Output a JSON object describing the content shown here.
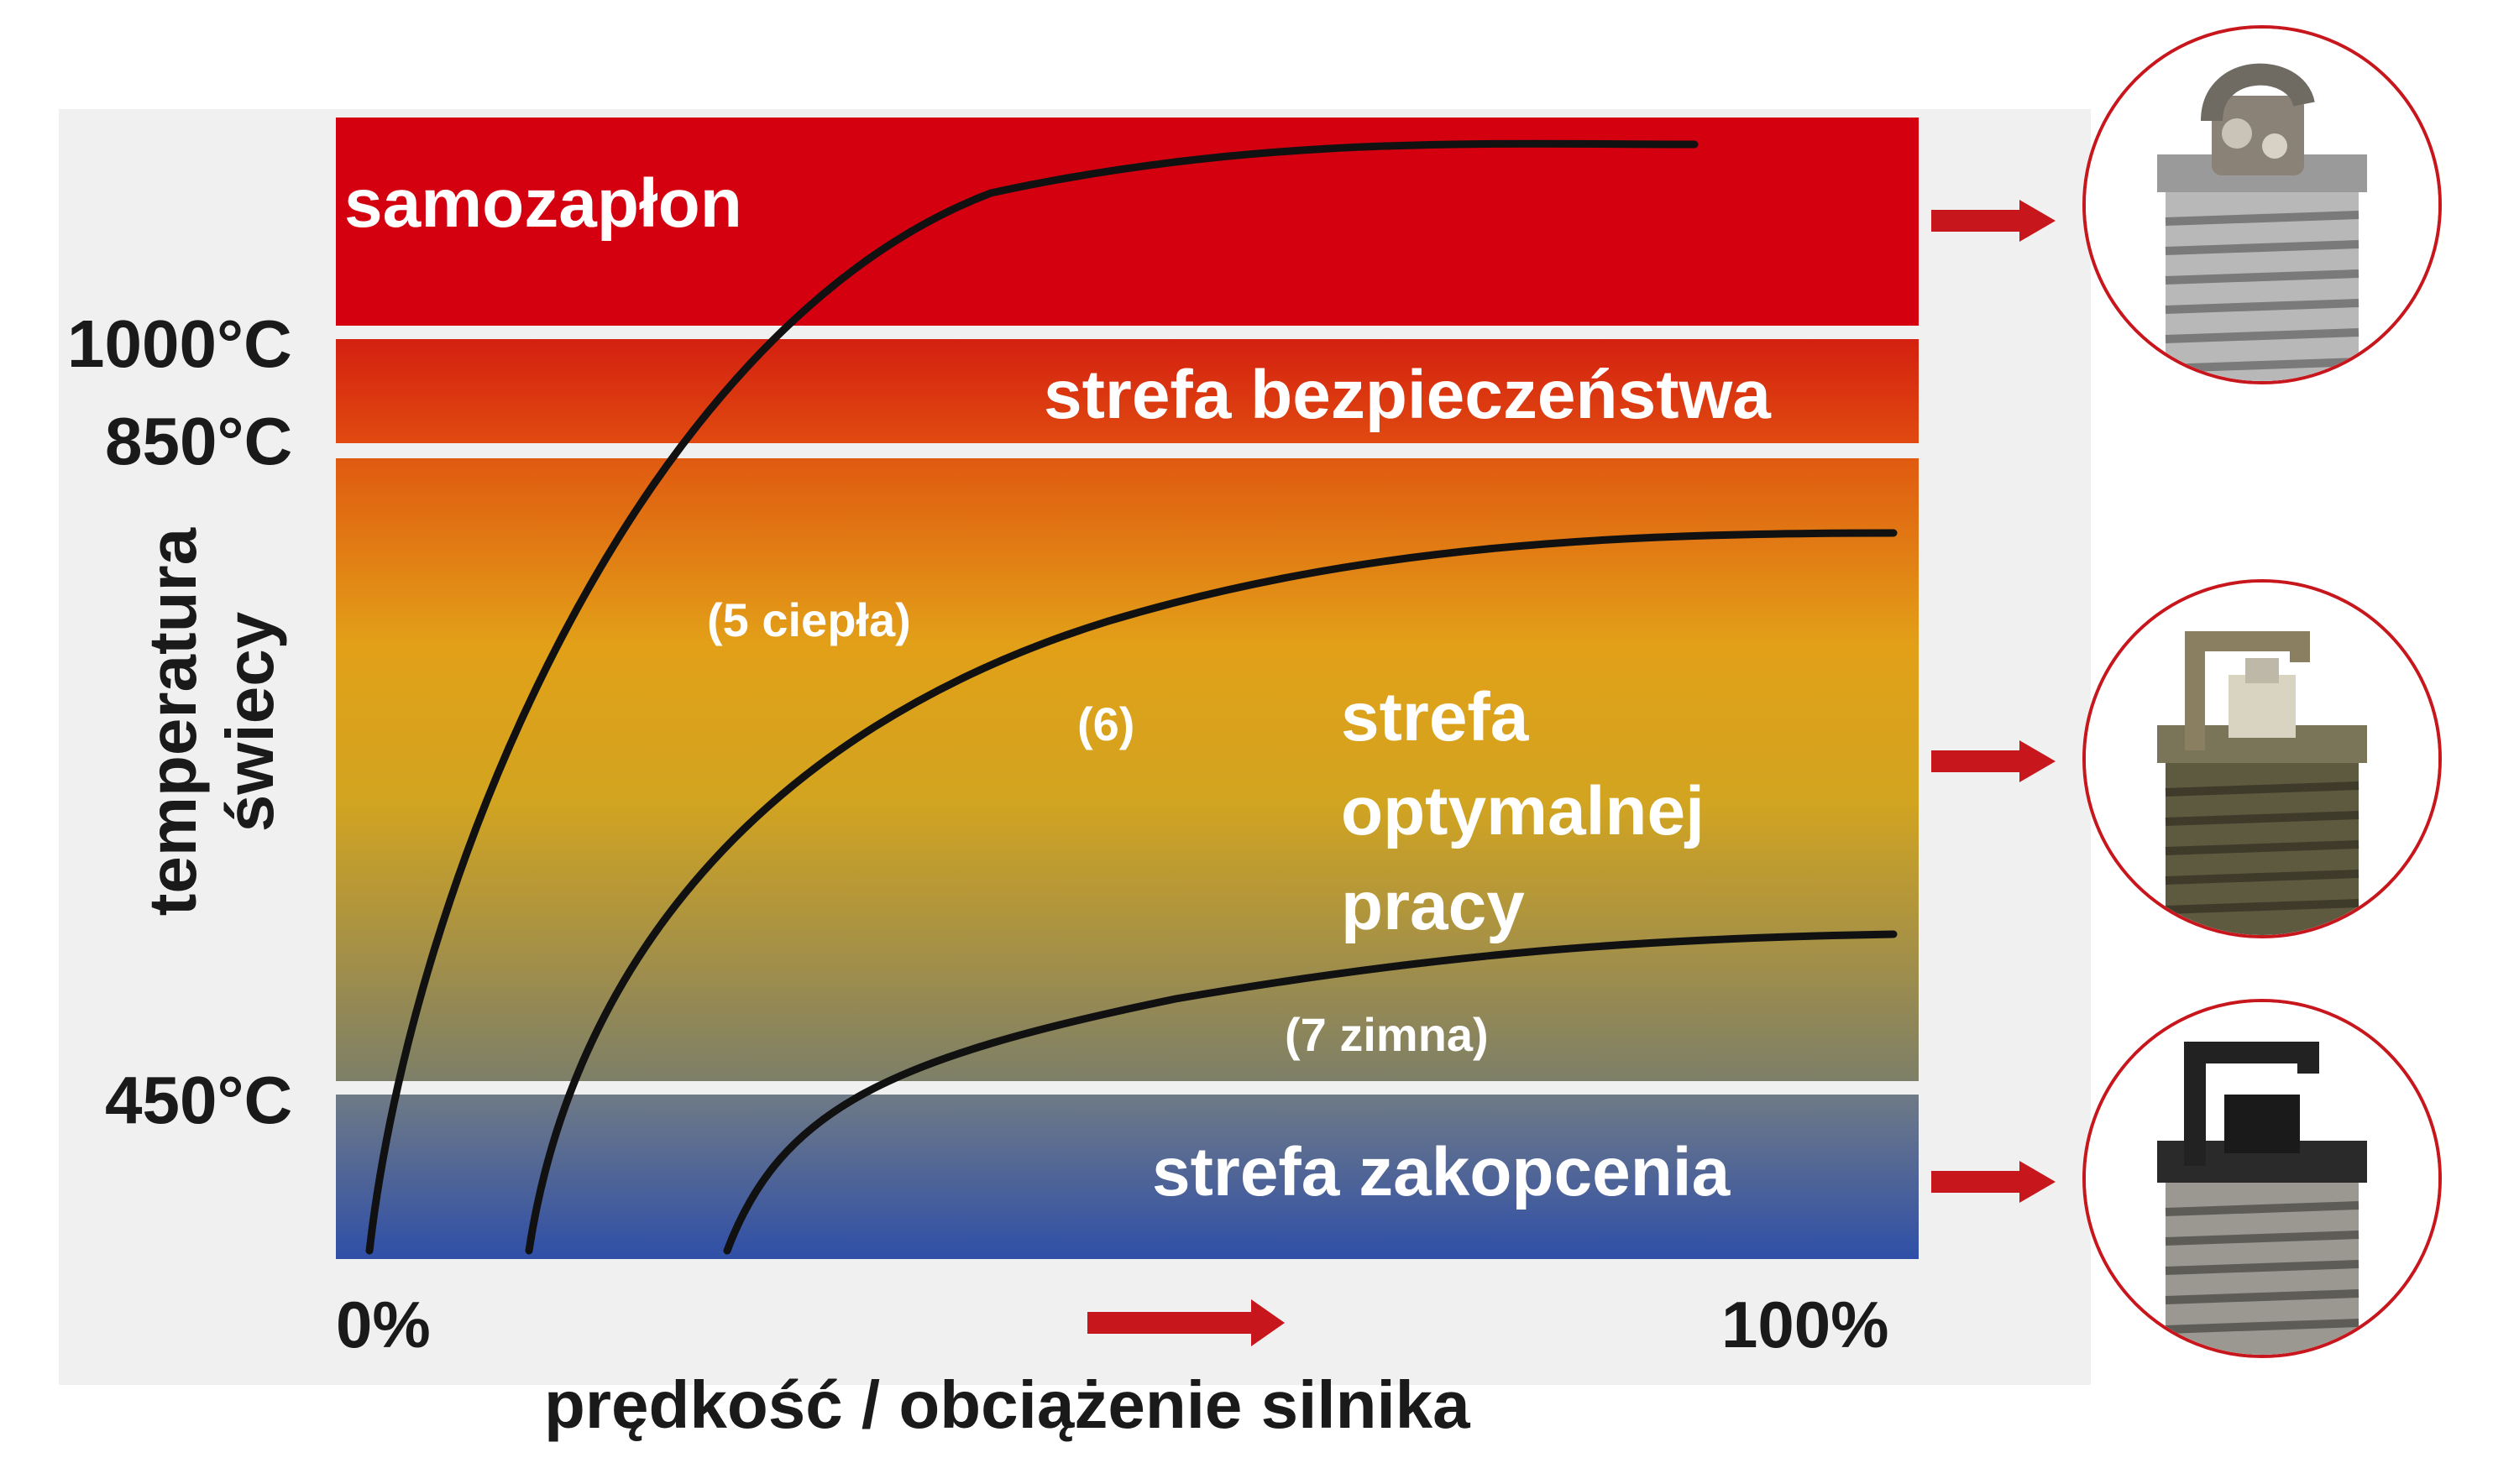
{
  "colors": {
    "red": "#d40010",
    "safety_red": "#d63a10",
    "orange": "#e26a10",
    "amber": "#e0a418",
    "olive": "#8c8a60",
    "blue": "#2f4fa8",
    "arrow": "#c8161d",
    "curve": "#111111"
  },
  "zones": {
    "preignition": "samozapłon",
    "safety": "strefa bezpieczeństwa",
    "optimal_line1": "strefa",
    "optimal_line2": "optymalnej",
    "optimal_line3": "pracy",
    "fouling": "strefa zakopcenia"
  },
  "temperatures": {
    "t1000": "1000°C",
    "t850": "850°C",
    "t450": "450°C"
  },
  "y_axis_title_line1": "temperatura",
  "y_axis_title_line2": "świecy",
  "x_axis": {
    "start": "0%",
    "end": "100%",
    "title": "prędkość / obciążenie silnika"
  },
  "curves": {
    "hot": "(5 ciepła)",
    "mid": "(6)",
    "cold": "(7 zimna)"
  },
  "plugs": [
    {
      "condition": "overheated",
      "icon": "spark-plug-overheated-icon"
    },
    {
      "condition": "normal",
      "icon": "spark-plug-normal-icon"
    },
    {
      "condition": "sooted",
      "icon": "spark-plug-sooted-icon"
    }
  ]
}
